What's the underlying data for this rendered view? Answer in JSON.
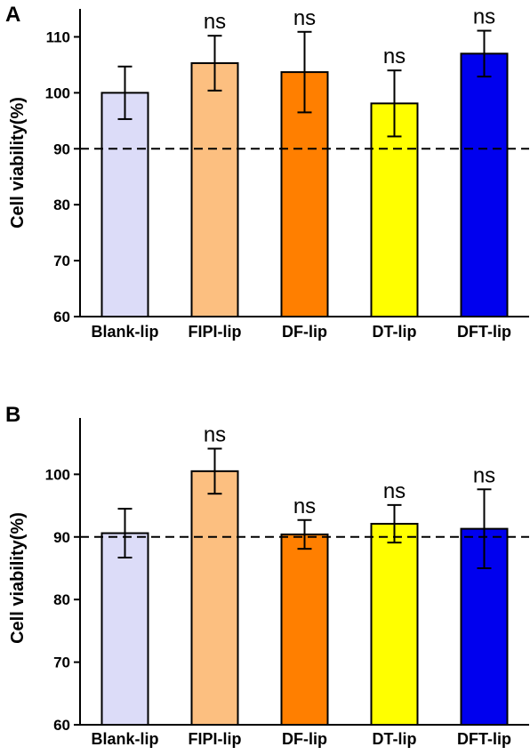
{
  "chart_data": [
    {
      "panel": "A",
      "type": "bar",
      "categories": [
        "Blank-lip",
        "FIPI-lip",
        "DF-lip",
        "DT-lip",
        "DFT-lip"
      ],
      "values": [
        100,
        105.3,
        103.7,
        98.1,
        107.0
      ],
      "error": [
        4.7,
        4.9,
        7.2,
        5.9,
        4.1
      ],
      "significance": [
        "",
        "ns",
        "ns",
        "ns",
        "ns"
      ],
      "colors": [
        "#dcdcf8",
        "#fcbf80",
        "#ff7f00",
        "#ffff00",
        "#0000ee"
      ],
      "ylabel": "Cell viability(%)",
      "ylim": [
        60,
        115
      ],
      "yticks": [
        60,
        70,
        80,
        90,
        100,
        110
      ],
      "reference_line": 90
    },
    {
      "panel": "B",
      "type": "bar",
      "categories": [
        "Blank-lip",
        "FIPI-lip",
        "DF-lip",
        "DT-lip",
        "DFT-lip"
      ],
      "values": [
        90.6,
        100.5,
        90.4,
        92.1,
        91.3
      ],
      "error": [
        3.9,
        3.6,
        2.3,
        3.0,
        6.3
      ],
      "significance": [
        "",
        "ns",
        "ns",
        "ns",
        "ns"
      ],
      "colors": [
        "#dcdcf8",
        "#fcbf80",
        "#ff7f00",
        "#ffff00",
        "#0000ee"
      ],
      "ylabel": "Cell viability(%)",
      "ylim": [
        60,
        109
      ],
      "yticks": [
        60,
        70,
        80,
        90,
        100
      ],
      "reference_line": 90
    }
  ]
}
